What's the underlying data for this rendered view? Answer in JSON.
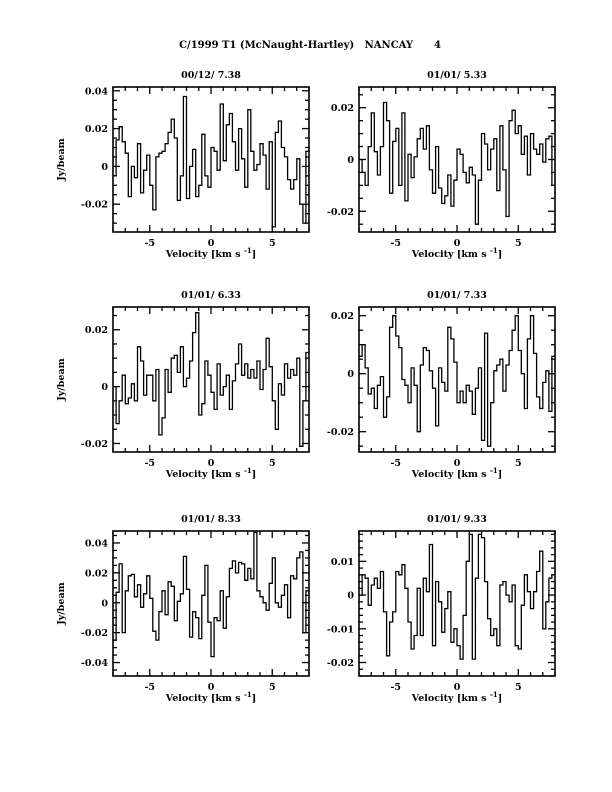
{
  "chart_data": {
    "suptitle": "C/1999 T1 (McNaught-Hartley)   NANCAY      4",
    "panels": [
      {
        "type": "line",
        "style": "histogram-step",
        "title": "00/12/ 7.38",
        "xlabel": "Velocity [km s",
        "xlabel_sup": "-1",
        "xlabel_end": "]",
        "ylabel": "Jy/beam",
        "xlim": [
          -8,
          8
        ],
        "ylim": [
          -0.0347,
          0.042
        ],
        "xticks": [
          {
            "v": -5,
            "label": "-5"
          },
          {
            "v": 0,
            "label": "0"
          },
          {
            "v": 5,
            "label": "5"
          }
        ],
        "yticks": [
          {
            "v": -0.02,
            "label": "-0.02"
          },
          {
            "v": 0,
            "label": "0"
          },
          {
            "v": 0.02,
            "label": "0.02"
          },
          {
            "v": 0.04,
            "label": "0.04"
          }
        ],
        "yminor": 0.005,
        "x_start": -8,
        "x_step": 0.25,
        "values": [
          -0.005,
          0.014,
          0.021,
          0.013,
          0.007,
          -0.016,
          0.0,
          -0.006,
          0.012,
          -0.014,
          -0.002,
          0.006,
          -0.01,
          -0.023,
          0.005,
          0.007,
          0.008,
          0.012,
          0.018,
          0.025,
          0.015,
          -0.018,
          -0.005,
          0.037,
          -0.017,
          0.0,
          0.009,
          -0.016,
          -0.01,
          0.017,
          -0.005,
          -0.011,
          0.01,
          0.008,
          -0.002,
          0.033,
          0.003,
          0.022,
          0.028,
          0.013,
          -0.002,
          0.02,
          0.004,
          -0.011,
          0.03,
          0.008,
          -0.002,
          0.001,
          0.012,
          0.006,
          -0.012,
          0.013,
          -0.032,
          0.018,
          0.024,
          0.01,
          0.005,
          -0.007,
          -0.012,
          -0.007,
          0.004,
          -0.02,
          -0.03,
          0.008
        ]
      },
      {
        "type": "line",
        "style": "histogram-step",
        "title": "01/01/ 5.33",
        "xlabel": "Velocity [km s",
        "xlabel_sup": "-1",
        "xlabel_end": "]",
        "ylabel": "",
        "xlim": [
          -8,
          8
        ],
        "ylim": [
          -0.028,
          0.028
        ],
        "xticks": [
          {
            "v": -5,
            "label": "-5"
          },
          {
            "v": 0,
            "label": "0"
          },
          {
            "v": 5,
            "label": "5"
          }
        ],
        "yticks": [
          {
            "v": -0.02,
            "label": "-0.02"
          },
          {
            "v": 0,
            "label": "0"
          },
          {
            "v": 0.02,
            "label": "0.02"
          }
        ],
        "yminor": 0.005,
        "x_start": -8,
        "x_step": 0.25,
        "values": [
          0.0,
          -0.005,
          -0.01,
          0.005,
          0.018,
          0.003,
          -0.006,
          0.005,
          0.022,
          0.015,
          -0.013,
          0.007,
          0.012,
          -0.01,
          0.018,
          -0.016,
          0.002,
          -0.007,
          0.001,
          0.008,
          0.012,
          0.004,
          0.013,
          -0.004,
          -0.013,
          0.005,
          -0.011,
          -0.017,
          -0.014,
          -0.006,
          -0.018,
          -0.008,
          0.004,
          0.002,
          -0.005,
          -0.009,
          -0.003,
          -0.006,
          -0.025,
          -0.008,
          0.01,
          0.006,
          -0.004,
          0.004,
          0.008,
          -0.012,
          0.013,
          -0.004,
          -0.022,
          0.015,
          0.019,
          0.01,
          0.013,
          0.002,
          0.009,
          -0.006,
          0.01,
          0.004,
          0.002,
          0.006,
          -0.001,
          0.008,
          0.009,
          -0.01
        ]
      },
      {
        "type": "line",
        "style": "histogram-step",
        "title": "01/01/ 6.33",
        "xlabel": "Velocity [km s",
        "xlabel_sup": "-1",
        "xlabel_end": "]",
        "ylabel": "Jy/beam",
        "xlim": [
          -8,
          8
        ],
        "ylim": [
          -0.023,
          0.028
        ],
        "xticks": [
          {
            "v": -5,
            "label": "-5"
          },
          {
            "v": 0,
            "label": "0"
          },
          {
            "v": 5,
            "label": "5"
          }
        ],
        "yticks": [
          {
            "v": -0.02,
            "label": "-0.02"
          },
          {
            "v": 0,
            "label": "0"
          },
          {
            "v": 0.02,
            "label": "0.02"
          }
        ],
        "yminor": 0.005,
        "x_start": -8,
        "x_step": 0.25,
        "values": [
          0.0,
          -0.013,
          -0.005,
          0.004,
          -0.006,
          -0.004,
          0.001,
          -0.005,
          0.014,
          0.009,
          -0.003,
          0.004,
          0.004,
          -0.005,
          0.006,
          -0.017,
          -0.011,
          0.006,
          -0.002,
          0.01,
          0.011,
          0.005,
          0.014,
          0.0,
          0.003,
          0.009,
          0.019,
          0.026,
          -0.01,
          -0.006,
          0.009,
          0.004,
          -0.002,
          -0.008,
          0.008,
          -0.003,
          0.0,
          0.004,
          -0.008,
          0.002,
          0.008,
          0.015,
          0.004,
          0.008,
          0.003,
          0.006,
          0.003,
          0.009,
          -0.001,
          0.006,
          0.017,
          0.007,
          -0.005,
          -0.015,
          0.001,
          -0.003,
          0.008,
          0.003,
          0.006,
          0.004,
          0.01,
          -0.021,
          -0.005,
          0.012
        ]
      },
      {
        "type": "line",
        "style": "histogram-step",
        "title": "01/01/ 7.33",
        "xlabel": "Velocity [km s",
        "xlabel_sup": "-1",
        "xlabel_end": "]",
        "ylabel": "",
        "xlim": [
          -8,
          8
        ],
        "ylim": [
          -0.027,
          0.023
        ],
        "xticks": [
          {
            "v": -5,
            "label": "-5"
          },
          {
            "v": 0,
            "label": "0"
          },
          {
            "v": 5,
            "label": "5"
          }
        ],
        "yticks": [
          {
            "v": -0.02,
            "label": "-0.02"
          },
          {
            "v": 0,
            "label": "0"
          },
          {
            "v": 0.02,
            "label": "0.02"
          }
        ],
        "yminor": 0.005,
        "x_start": -8,
        "x_step": 0.25,
        "values": [
          0.006,
          0.01,
          0.002,
          -0.007,
          -0.005,
          -0.012,
          -0.004,
          -0.001,
          -0.015,
          -0.008,
          0.016,
          0.02,
          0.013,
          0.009,
          -0.002,
          -0.004,
          -0.01,
          0.002,
          -0.004,
          -0.02,
          0.003,
          0.009,
          0.008,
          0.001,
          -0.005,
          -0.018,
          0.002,
          -0.003,
          -0.006,
          0.016,
          0.012,
          0.004,
          -0.01,
          -0.006,
          -0.01,
          -0.004,
          -0.006,
          -0.014,
          -0.005,
          0.002,
          -0.023,
          0.014,
          -0.025,
          -0.01,
          0.001,
          0.003,
          0.005,
          -0.006,
          0.003,
          0.008,
          0.015,
          0.02,
          0.008,
          0.0,
          -0.012,
          0.012,
          0.02,
          0.007,
          -0.008,
          -0.012,
          -0.003,
          0.001,
          -0.013,
          0.006
        ]
      },
      {
        "type": "line",
        "style": "histogram-step",
        "title": "01/01/ 8.33",
        "xlabel": "Velocity [km s",
        "xlabel_sup": "-1",
        "xlabel_end": "]",
        "ylabel": "Jy/beam",
        "xlim": [
          -8,
          8
        ],
        "ylim": [
          -0.049,
          0.048
        ],
        "xticks": [
          {
            "v": -5,
            "label": "-5"
          },
          {
            "v": 0,
            "label": "0"
          },
          {
            "v": 5,
            "label": "5"
          }
        ],
        "yticks": [
          {
            "v": -0.04,
            "label": "-0.04"
          },
          {
            "v": -0.02,
            "label": "-0.02"
          },
          {
            "v": 0,
            "label": "0"
          },
          {
            "v": 0.02,
            "label": "0.02"
          },
          {
            "v": 0.04,
            "label": "0.04"
          }
        ],
        "yminor": 0.005,
        "x_start": -8,
        "x_step": 0.25,
        "values": [
          -0.025,
          0.007,
          0.026,
          -0.02,
          0.008,
          0.018,
          0.019,
          0.004,
          0.012,
          -0.003,
          0.006,
          0.018,
          0.003,
          -0.019,
          -0.025,
          -0.006,
          0.008,
          -0.008,
          0.014,
          0.011,
          -0.012,
          0.001,
          0.006,
          0.031,
          0.009,
          -0.023,
          -0.006,
          -0.01,
          -0.024,
          0.005,
          0.025,
          -0.013,
          -0.036,
          -0.01,
          -0.012,
          0.008,
          -0.017,
          0.004,
          0.023,
          0.028,
          0.02,
          0.027,
          0.026,
          0.015,
          0.023,
          0.016,
          0.047,
          0.008,
          0.004,
          0.0,
          -0.005,
          0.013,
          0.03,
          0.0,
          -0.003,
          0.005,
          0.012,
          -0.01,
          0.018,
          0.016,
          0.03,
          0.034,
          -0.02,
          0.008
        ]
      },
      {
        "type": "line",
        "style": "histogram-step",
        "title": "01/01/ 9.33",
        "xlabel": "Velocity [km s",
        "xlabel_sup": "-1",
        "xlabel_end": "]",
        "ylabel": "",
        "xlim": [
          -8,
          8
        ],
        "ylim": [
          -0.024,
          0.019
        ],
        "xticks": [
          {
            "v": -5,
            "label": "-5"
          },
          {
            "v": 0,
            "label": "0"
          },
          {
            "v": 5,
            "label": "5"
          }
        ],
        "yticks": [
          {
            "v": -0.02,
            "label": "-0.02"
          },
          {
            "v": -0.01,
            "label": "-0.01"
          },
          {
            "v": 0,
            "label": "0"
          },
          {
            "v": 0.01,
            "label": "0.01"
          }
        ],
        "yminor": 0.002,
        "x_start": -8,
        "x_step": 0.25,
        "values": [
          0.0,
          0.006,
          0.005,
          -0.003,
          0.003,
          0.005,
          0.002,
          0.007,
          -0.005,
          -0.018,
          -0.008,
          -0.005,
          0.007,
          0.006,
          0.009,
          0.002,
          -0.008,
          -0.016,
          -0.012,
          0.002,
          -0.012,
          0.005,
          0.001,
          0.015,
          -0.015,
          0.004,
          -0.002,
          -0.011,
          -0.004,
          0.001,
          -0.014,
          -0.01,
          -0.015,
          -0.019,
          -0.006,
          0.01,
          0.018,
          -0.019,
          0.005,
          0.018,
          0.017,
          0.004,
          -0.007,
          -0.012,
          -0.01,
          -0.015,
          0.003,
          0.004,
          0.0,
          -0.002,
          0.003,
          -0.015,
          -0.016,
          -0.003,
          0.006,
          0.001,
          -0.004,
          0.001,
          0.007,
          0.013,
          -0.01,
          -0.002,
          0.005,
          0.006
        ]
      }
    ]
  }
}
